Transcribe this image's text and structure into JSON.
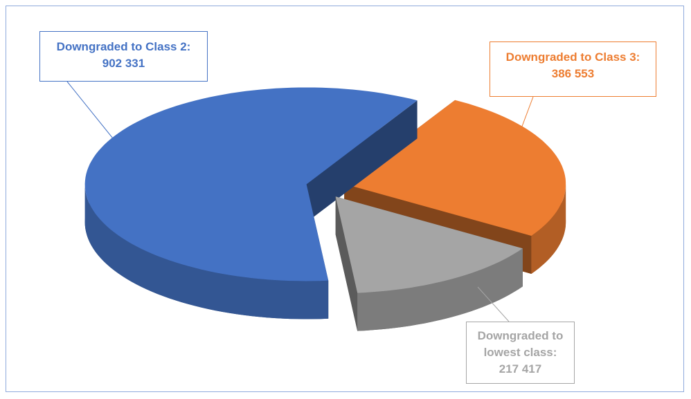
{
  "chart_data": {
    "type": "pie",
    "categories": [
      "Downgraded to Class 2:",
      "Downgraded to Class 3:",
      "Downgraded to lowest class:"
    ],
    "values": [
      902331,
      386553,
      217417
    ],
    "value_labels": [
      "902 331",
      "386 553",
      "217 417"
    ],
    "colors": [
      "#4472c4",
      "#ed7d31",
      "#a5a5a5"
    ]
  }
}
